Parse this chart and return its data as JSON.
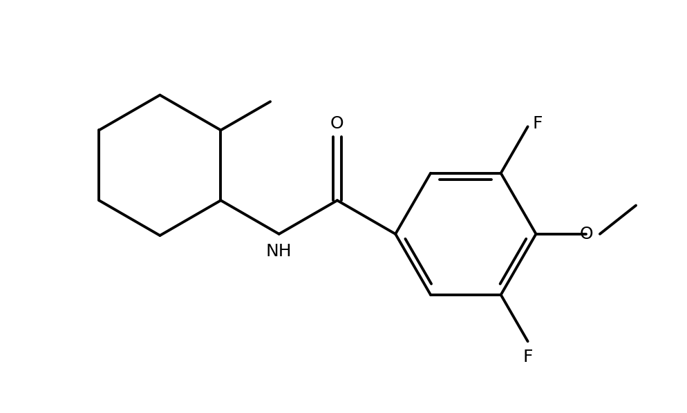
{
  "background_color": "#ffffff",
  "line_color": "#000000",
  "line_width": 2.8,
  "font_size": 18,
  "figsize": [
    9.94,
    5.98
  ],
  "dpi": 100,
  "xlim": [
    0,
    10
  ],
  "ylim": [
    -3.2,
    3.5
  ]
}
